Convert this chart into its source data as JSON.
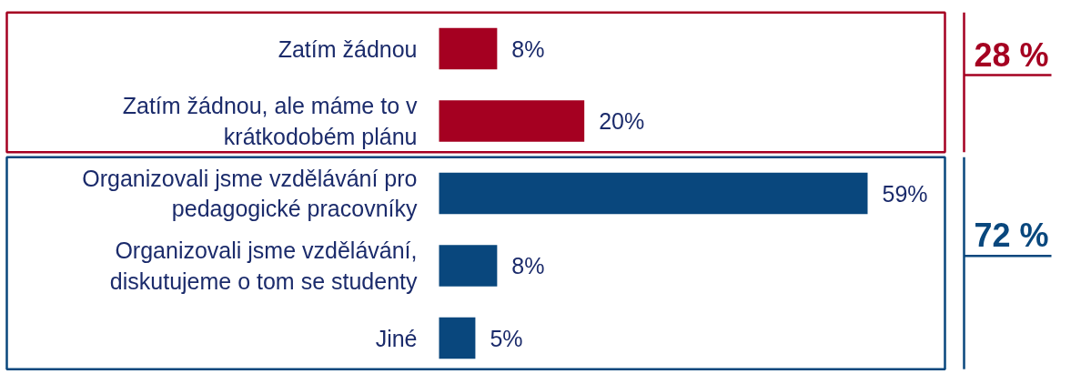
{
  "chart_data": {
    "type": "bar",
    "orientation": "horizontal",
    "categories": [
      "Zatím žádnou",
      "Zatím žádnou, ale máme to v krátkodobém plánu",
      "Organizovali jsme vzdělávání pro pedagogické pracovníky",
      "Organizovali jsme vzdělávání, diskutujeme o tom se studenty",
      "Jiné"
    ],
    "values": [
      8,
      20,
      59,
      8,
      5
    ],
    "colors": [
      "#a50021",
      "#a50021",
      "#09477d",
      "#09477d",
      "#09477d"
    ],
    "value_labels": [
      "8%",
      "20%",
      "59%",
      "8%",
      "5%"
    ],
    "annotations": [
      "28 %",
      "72 %"
    ]
  }
}
